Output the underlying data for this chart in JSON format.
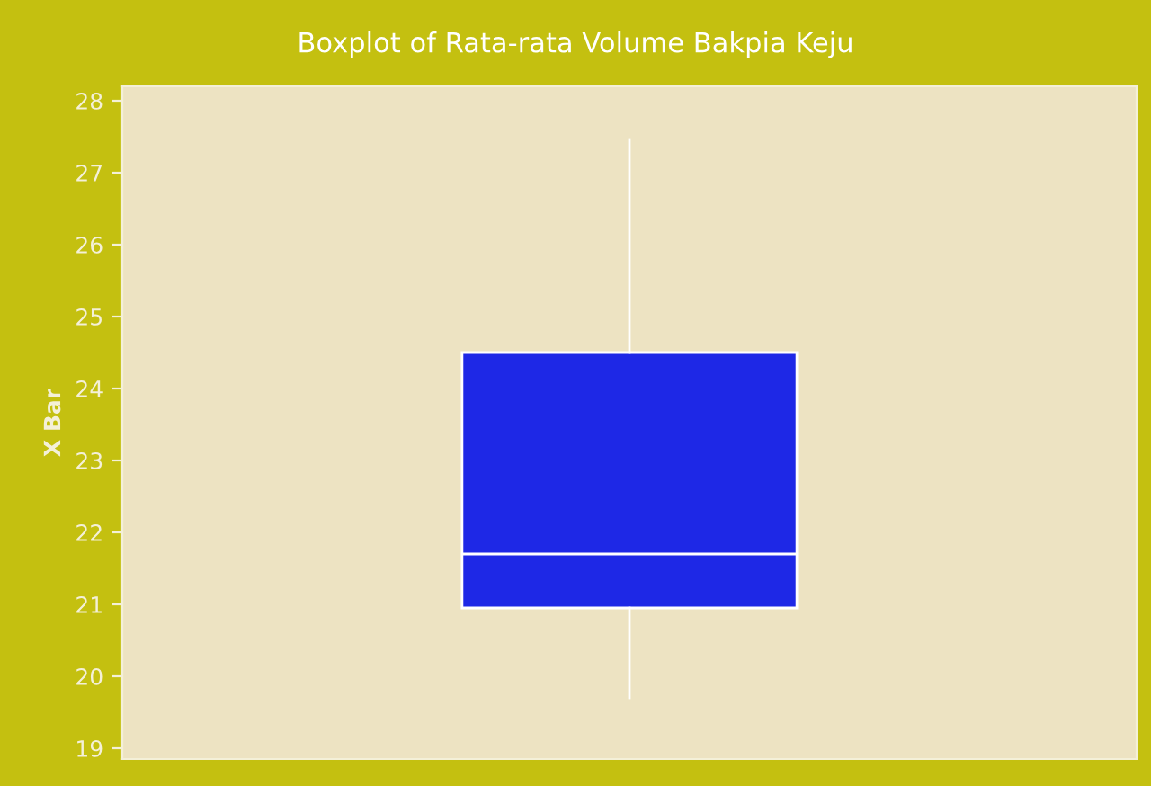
{
  "chart_data": {
    "type": "box",
    "title": "Boxplot of Rata-rata Volume Bakpia Keju",
    "ylabel": "X Bar",
    "categories": [
      null
    ],
    "boxes": [
      {
        "low": 19.7,
        "q1": 20.95,
        "median": 21.7,
        "q3": 24.5,
        "high": 27.45
      }
    ],
    "color": "#1e28e6",
    "ylim": [
      18.85,
      28.2
    ],
    "yticks": [
      19,
      20,
      21,
      22,
      23,
      24,
      25,
      26,
      27,
      28
    ],
    "grid": false
  }
}
